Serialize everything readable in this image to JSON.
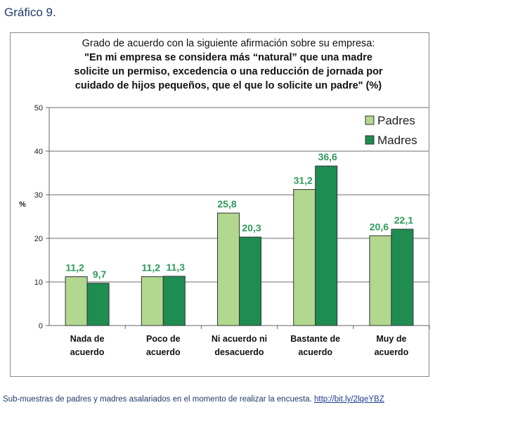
{
  "figure_label": "Gráfico 9.",
  "footnote": {
    "text": "Sub-muestras de padres y madres asalariados en el momento de realizar la encuesta.",
    "link": "http://bit.ly/2lqeYBZ"
  },
  "chart_data": {
    "type": "bar",
    "title_line1": "Grado de acuerdo con la siguiente afirmación sobre su empresa:",
    "title_line2": "\"En mi empresa se considera más “natural” que una madre",
    "title_line3": "solicite un permiso, excedencia o una reducción de jornada por",
    "title_line4": "cuidado de hijos pequeños, que el que lo solicite un padre\" (%)",
    "ylabel": "%",
    "ylim": [
      0,
      50
    ],
    "yticks": [
      0,
      10,
      20,
      30,
      40,
      50
    ],
    "grid": true,
    "legend": "top-right",
    "categories": [
      [
        "Nada de",
        "acuerdo"
      ],
      [
        "Poco de",
        "acuerdo"
      ],
      [
        "Ni acuerdo ni",
        "desacuerdo"
      ],
      [
        "Bastante de",
        "acuerdo"
      ],
      [
        "Muy de",
        "acuerdo"
      ]
    ],
    "series": [
      {
        "name": "Padres",
        "color": "#b2d78f",
        "values": [
          11.2,
          11.2,
          25.8,
          31.2,
          20.6
        ],
        "labels": [
          "11,2",
          "11,2",
          "25,8",
          "31,2",
          "20,6"
        ]
      },
      {
        "name": "Madres",
        "color": "#1f8c52",
        "values": [
          9.7,
          11.3,
          20.3,
          36.6,
          22.1
        ],
        "labels": [
          "9,7",
          "11,3",
          "20,3",
          "36,6",
          "22,1"
        ]
      }
    ],
    "label_color": "#2e9a5c"
  }
}
